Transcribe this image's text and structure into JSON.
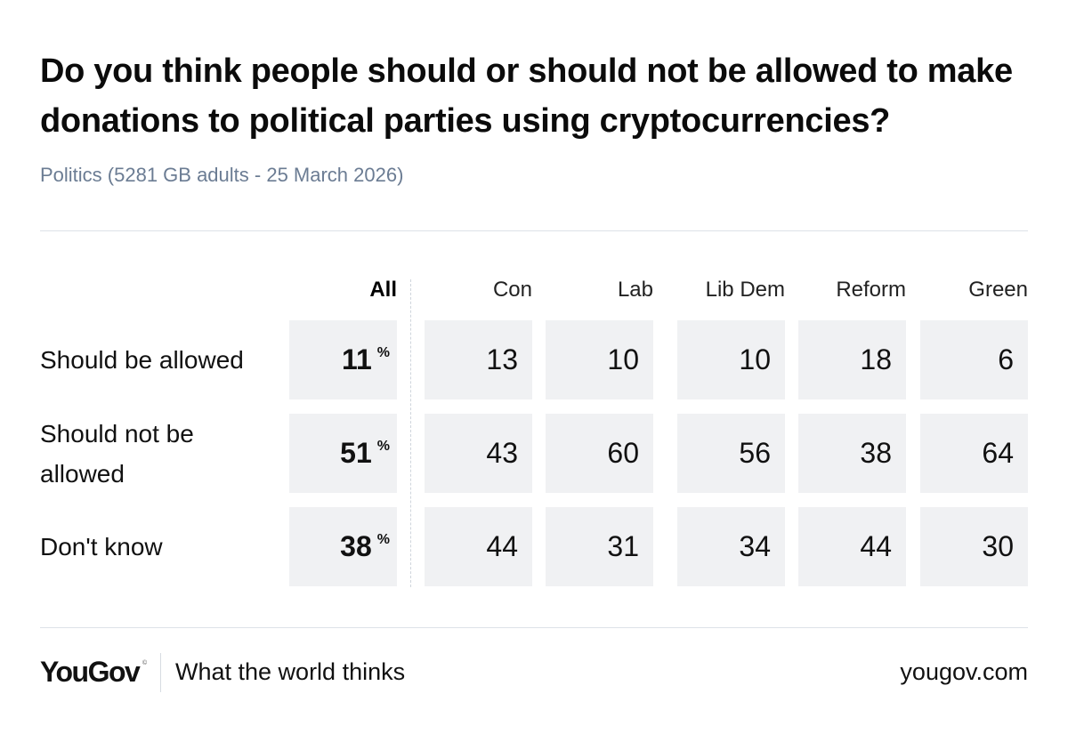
{
  "chart_data": {
    "type": "table",
    "title": "Do you think people should or should not be allowed to make donations to political parties using cryptocurrencies?",
    "subtitle": "Politics (5281 GB adults - 25 March 2026)",
    "columns": [
      "All",
      "Con",
      "Lab",
      "Lib Dem",
      "Reform",
      "Green"
    ],
    "percent_sign": "%",
    "rows": [
      {
        "label": "Should be allowed",
        "values": [
          "11",
          "13",
          "10",
          "10",
          "18",
          "6"
        ]
      },
      {
        "label": "Should not be allowed",
        "values": [
          "51",
          "43",
          "60",
          "56",
          "38",
          "64"
        ]
      },
      {
        "label": "Don't know",
        "values": [
          "38",
          "44",
          "31",
          "34",
          "44",
          "30"
        ]
      }
    ]
  },
  "footer": {
    "logo": "YouGov",
    "logo_mark": "©",
    "tagline": "What the world thinks",
    "site": "yougov.com"
  },
  "colors": {
    "cell_background": "#f0f1f3",
    "subtitle": "#6b7c93",
    "rule": "#dde2e8"
  }
}
